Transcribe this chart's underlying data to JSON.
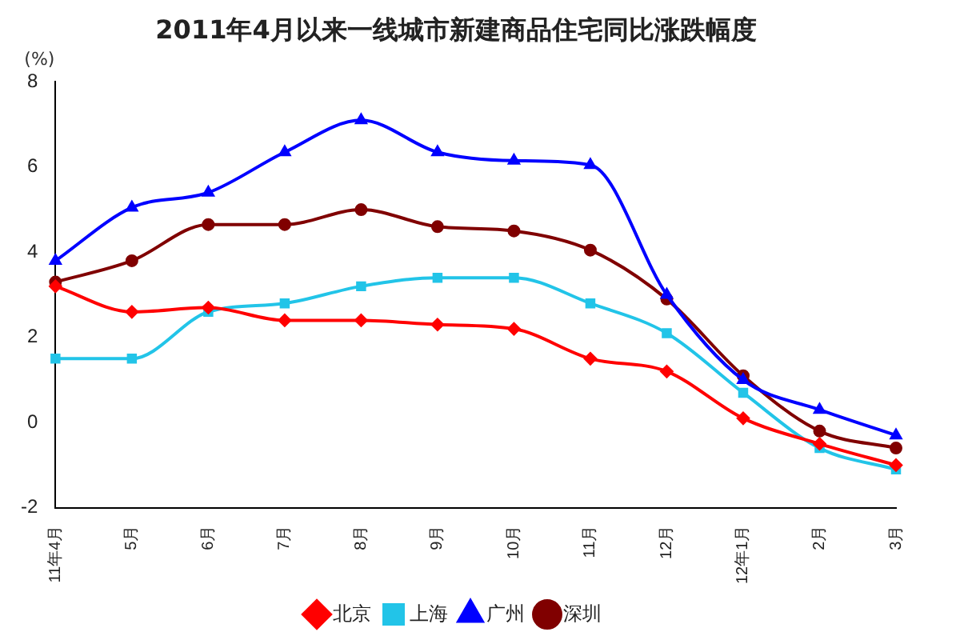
{
  "chart_data": {
    "type": "line",
    "title": "2011年4月以来一线城市新建商品住宅同比涨跌幅度",
    "ylabel": "(%)",
    "categories": [
      "11年4月",
      "5月",
      "6月",
      "7月",
      "8月",
      "9月",
      "10月",
      "11月",
      "12月",
      "12年1月",
      "2月",
      "3月"
    ],
    "series": [
      {
        "name": "北京",
        "color": "#ff0000",
        "marker": "diamond",
        "values": [
          3.2,
          2.6,
          2.7,
          2.4,
          2.4,
          2.3,
          2.2,
          1.5,
          1.2,
          0.1,
          -0.5,
          -1.0
        ]
      },
      {
        "name": "上海",
        "color": "#22c4e8",
        "marker": "square",
        "values": [
          1.5,
          1.5,
          2.6,
          2.8,
          3.2,
          3.4,
          3.4,
          2.8,
          2.1,
          0.7,
          -0.6,
          -1.1
        ]
      },
      {
        "name": "广州",
        "color": "#0000ff",
        "marker": "triangle",
        "values": [
          3.8,
          5.05,
          5.4,
          6.35,
          7.1,
          6.35,
          6.15,
          6.05,
          3.0,
          1.0,
          0.3,
          -0.3
        ]
      },
      {
        "name": "深圳",
        "color": "#800000",
        "marker": "circle",
        "values": [
          3.3,
          3.8,
          4.65,
          4.65,
          5.0,
          4.6,
          4.5,
          4.05,
          2.9,
          1.1,
          -0.2,
          -0.6
        ]
      }
    ],
    "ylim": [
      -2,
      8
    ],
    "yticks": [
      -2,
      0,
      2,
      4,
      6,
      8
    ],
    "grid": false,
    "legend": "bottom",
    "line_style": "solid"
  }
}
